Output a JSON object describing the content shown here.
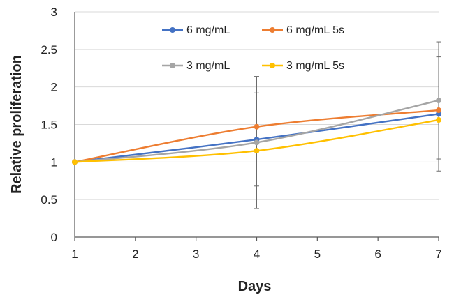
{
  "chart_data": {
    "type": "line",
    "title": "",
    "xlabel": "Days",
    "ylabel": "Relative proliferation",
    "xlim": [
      1,
      7
    ],
    "ylim": [
      0,
      3
    ],
    "xticks": [
      1,
      2,
      3,
      4,
      5,
      6,
      7
    ],
    "yticks": [
      0,
      0.5,
      1,
      1.5,
      2,
      2.5,
      3
    ],
    "ytick_labels": [
      "0",
      "0.5",
      "1",
      "1.5",
      "2",
      "2.5",
      "3"
    ],
    "grid": "horizontal",
    "legend_position": "top-center",
    "series": [
      {
        "name": "6 mg/mL",
        "color": "#4472c4",
        "x": [
          1,
          4,
          7
        ],
        "y": [
          1.0,
          1.3,
          1.64
        ],
        "err": [
          0,
          0.62,
          0.76
        ]
      },
      {
        "name": "6 mg/mL 5s",
        "color": "#ed7d31",
        "x": [
          1,
          4,
          7
        ],
        "y": [
          1.0,
          1.47,
          1.69
        ],
        "err": [
          0,
          0.0,
          0.0
        ]
      },
      {
        "name": "3 mg/mL",
        "color": "#a5a5a5",
        "x": [
          1,
          4,
          7
        ],
        "y": [
          1.0,
          1.26,
          1.82
        ],
        "err": [
          0,
          0.88,
          0.78
        ]
      },
      {
        "name": "3 mg/mL 5s",
        "color": "#ffc000",
        "x": [
          1,
          4,
          7
        ],
        "y": [
          1.0,
          1.15,
          1.56
        ],
        "err": [
          0,
          0.0,
          0.0
        ]
      }
    ]
  }
}
